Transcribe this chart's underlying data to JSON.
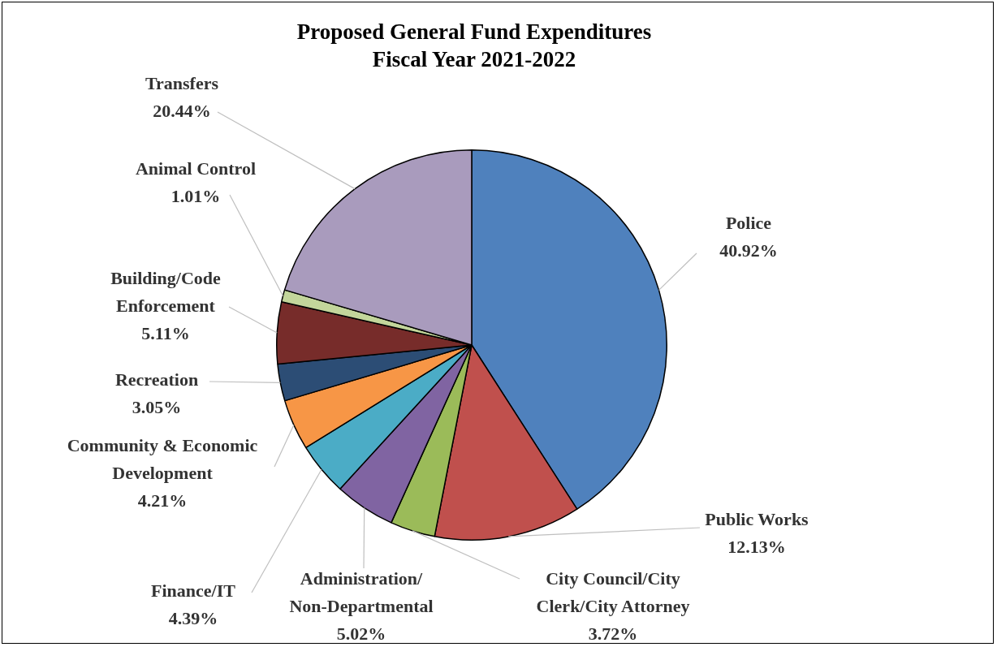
{
  "chart_data": {
    "type": "pie",
    "title": "Proposed General Fund Expenditures Fiscal Year 2021-2022",
    "categories": [
      "Police",
      "Public Works",
      "City Council/City Clerk/City Attorney",
      "Administration/Non-Departmental",
      "Finance/IT",
      "Community & Economic Development",
      "Recreation",
      "Building/Code Enforcement",
      "Animal Control",
      "Transfers"
    ],
    "values": [
      40.92,
      12.13,
      3.72,
      5.02,
      4.39,
      4.21,
      3.05,
      5.11,
      1.01,
      20.44
    ],
    "value_labels": [
      "40.92%",
      "12.13%",
      "3.72%",
      "5.02%",
      "4.39%",
      "4.21%",
      "3.05%",
      "5.11%",
      "1.01%",
      "20.44%"
    ],
    "colors": [
      "#4f81bd",
      "#c0504d",
      "#9bbb59",
      "#8064a2",
      "#4bacc6",
      "#f79646",
      "#2c4d75",
      "#772c2a",
      "#c3d69b",
      "#a99bbd"
    ],
    "legend": false
  }
}
